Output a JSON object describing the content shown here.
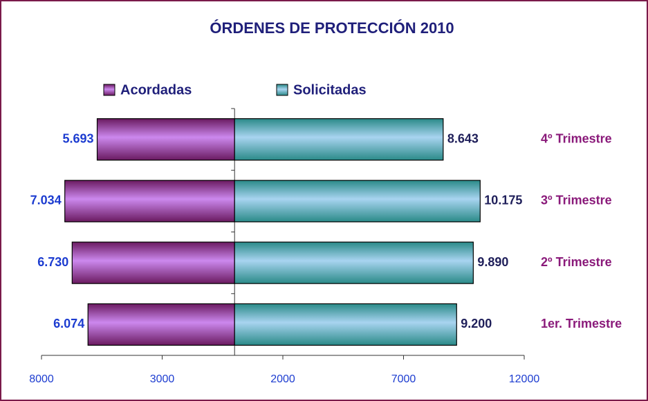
{
  "chart_data": {
    "type": "butterfly-bar",
    "title": "ÓRDENES DE PROTECCIÓN 2010",
    "categories": [
      "1er. Trimestre",
      "2º Trimestre",
      "3º Trimestre",
      "4º Trimestre"
    ],
    "series": [
      {
        "name": "Acordadas",
        "color": "#cc88ee",
        "direction": "left",
        "values": [
          6074,
          6730,
          7034,
          5693
        ],
        "value_labels": [
          "6.074",
          "6.730",
          "7.034",
          "5.693"
        ]
      },
      {
        "name": "Solicitadas",
        "color": "#a8d4f0",
        "direction": "right",
        "values": [
          9200,
          9890,
          10175,
          8643
        ],
        "value_labels": [
          "9.200",
          "9.890",
          "10.175",
          "8.643"
        ]
      }
    ],
    "xlim": [
      -8000,
      12000
    ],
    "xticks": [
      {
        "value": -8000,
        "label": "8000"
      },
      {
        "value": -3000,
        "label": "3000"
      },
      2000,
      7000,
      12000
    ],
    "legend": "top"
  }
}
